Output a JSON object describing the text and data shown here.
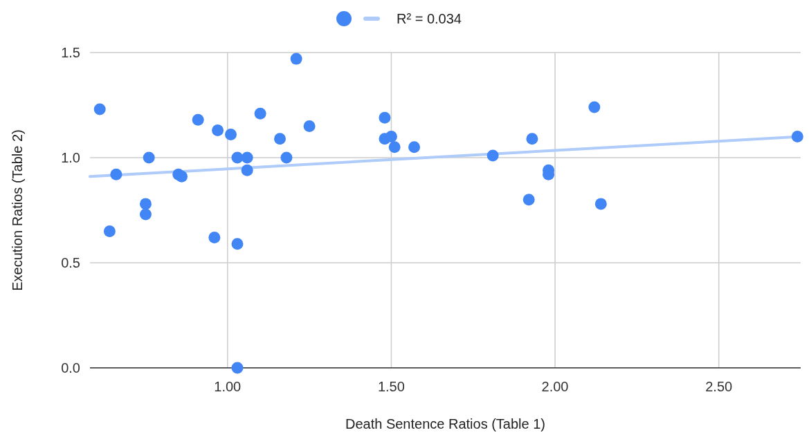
{
  "chart_data": {
    "type": "scatter",
    "xlabel": "Death Sentence Ratios (Table 1)",
    "ylabel": "Execution Ratios (Table 2)",
    "xlim": [
      0.58,
      2.75
    ],
    "ylim": [
      0,
      1.5
    ],
    "xticks": [
      {
        "value": 1,
        "label": "1.00"
      },
      {
        "value": 1.5,
        "label": "1.50"
      },
      {
        "value": 2,
        "label": "2.00"
      },
      {
        "value": 2.5,
        "label": "2.50"
      }
    ],
    "yticks": [
      {
        "value": 0,
        "label": "0.0"
      },
      {
        "value": 0.5,
        "label": "0.5"
      },
      {
        "value": 1,
        "label": "1.0"
      },
      {
        "value": 1.5,
        "label": "1.5"
      }
    ],
    "grid": true,
    "legend": "top",
    "series": [
      {
        "marker": "circle",
        "color": "#4285f4",
        "x": [
          0.61,
          0.66,
          0.64,
          0.76,
          0.75,
          0.75,
          0.85,
          0.86,
          0.91,
          0.97,
          0.96,
          1.01,
          1.03,
          1.03,
          1.03,
          1.06,
          1.06,
          1.1,
          1.16,
          1.18,
          1.21,
          1.25,
          1.48,
          1.48,
          1.5,
          1.51,
          1.57,
          1.81,
          1.92,
          1.93,
          1.98,
          1.98,
          2.12,
          2.14,
          2.74
        ],
        "values": [
          1.23,
          0.92,
          0.65,
          1.0,
          0.78,
          0.73,
          0.92,
          0.91,
          1.18,
          1.13,
          0.62,
          1.11,
          1.0,
          0.59,
          0.0,
          1.0,
          0.94,
          1.21,
          1.09,
          1.0,
          1.47,
          1.15,
          1.19,
          1.09,
          1.1,
          1.05,
          1.05,
          1.01,
          0.8,
          1.09,
          0.94,
          0.92,
          1.24,
          0.78,
          1.1
        ]
      },
      {
        "type": "line",
        "name": "R² = 0.034",
        "color": "#aecbfa",
        "x": [
          0.58,
          2.75
        ],
        "values": [
          0.91,
          1.1
        ]
      }
    ]
  }
}
